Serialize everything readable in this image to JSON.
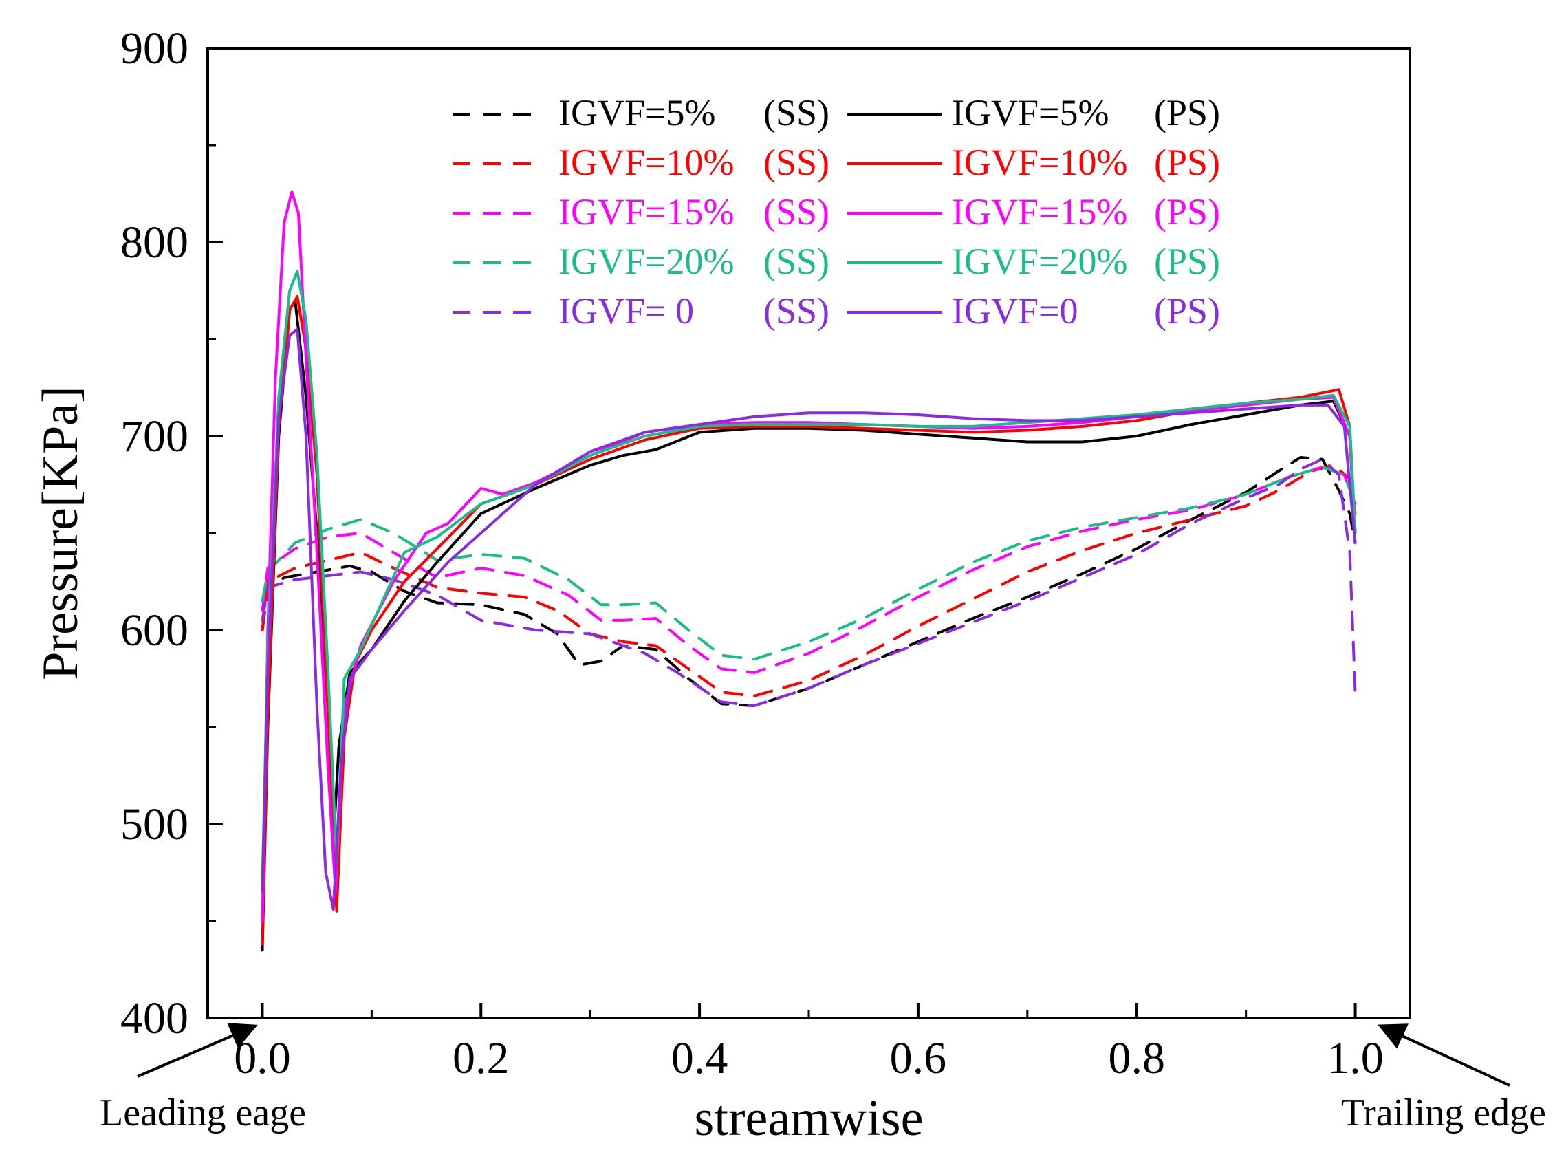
{
  "chart_data": {
    "type": "line",
    "title": "",
    "xlabel": "streamwise",
    "ylabel": "Pressure[KPa]",
    "xlim": [
      -0.05,
      1.05
    ],
    "ylim": [
      400,
      900
    ],
    "xticks": [
      0.0,
      0.2,
      0.4,
      0.6,
      0.8,
      1.0
    ],
    "xtick_labels": [
      "0.0",
      "0.2",
      "0.4",
      "0.6",
      "0.8",
      "1.0"
    ],
    "yticks": [
      400,
      500,
      600,
      700,
      800,
      900
    ],
    "ytick_labels": [
      "400",
      "500",
      "600",
      "700",
      "800",
      "900"
    ],
    "annotations": [
      {
        "name": "leading-edge",
        "text": "Leading eage",
        "x": 0.0
      },
      {
        "name": "trailing-edge",
        "text": "Trailing edge",
        "x": 1.0
      }
    ],
    "legend_position": "top-center",
    "series": [
      {
        "name": "IGVF=5% (SS)",
        "legend": [
          "IGVF=5%",
          "(SS)"
        ],
        "color": "#000000",
        "dash": true,
        "x": [
          0.0,
          0.005,
          0.02,
          0.05,
          0.08,
          0.1,
          0.13,
          0.16,
          0.2,
          0.24,
          0.27,
          0.29,
          0.31,
          0.33,
          0.36,
          0.39,
          0.42,
          0.45,
          0.5,
          0.55,
          0.6,
          0.65,
          0.7,
          0.75,
          0.8,
          0.85,
          0.9,
          0.93,
          0.95,
          0.97,
          0.985,
          0.995,
          1.0
        ],
        "y": [
          600,
          622,
          627,
          630,
          633,
          630,
          620,
          614,
          613,
          608,
          598,
          582,
          584,
          592,
          590,
          575,
          562,
          561,
          570,
          582,
          594,
          606,
          617,
          629,
          642,
          657,
          671,
          682,
          689,
          688,
          672,
          660,
          645
        ]
      },
      {
        "name": "IGVF=10% (SS)",
        "legend": [
          "IGVF=10%",
          "(SS)"
        ],
        "color": "#ff0000",
        "dash": true,
        "x": [
          0.0,
          0.005,
          0.03,
          0.06,
          0.09,
          0.12,
          0.16,
          0.2,
          0.24,
          0.27,
          0.3,
          0.33,
          0.36,
          0.39,
          0.42,
          0.45,
          0.5,
          0.55,
          0.6,
          0.65,
          0.7,
          0.75,
          0.8,
          0.85,
          0.9,
          0.93,
          0.96,
          0.98,
          0.995,
          1.0
        ],
        "y": [
          600,
          625,
          632,
          636,
          640,
          632,
          622,
          619,
          617,
          610,
          598,
          594,
          592,
          580,
          568,
          566,
          574,
          587,
          602,
          616,
          630,
          641,
          650,
          657,
          664,
          672,
          682,
          685,
          678,
          660
        ]
      },
      {
        "name": "IGVF=15% (SS)",
        "legend": [
          "IGVF=15%",
          "(SS)"
        ],
        "color": "#ff00ff",
        "dash": true,
        "x": [
          0.0,
          0.005,
          0.03,
          0.06,
          0.09,
          0.12,
          0.16,
          0.2,
          0.24,
          0.28,
          0.31,
          0.33,
          0.36,
          0.39,
          0.42,
          0.45,
          0.5,
          0.55,
          0.6,
          0.65,
          0.7,
          0.75,
          0.8,
          0.85,
          0.9,
          0.94,
          0.97,
          0.99,
          1.0
        ],
        "y": [
          610,
          632,
          642,
          648,
          650,
          640,
          627,
          632,
          628,
          618,
          605,
          605,
          606,
          592,
          580,
          578,
          588,
          602,
          617,
          631,
          643,
          651,
          657,
          662,
          670,
          679,
          684,
          680,
          665
        ]
      },
      {
        "name": "IGVF=20% (SS)",
        "legend": [
          "IGVF=20%",
          "(SS)"
        ],
        "color": "#1abc8a",
        "dash": true,
        "x": [
          0.0,
          0.005,
          0.03,
          0.06,
          0.09,
          0.12,
          0.16,
          0.2,
          0.24,
          0.28,
          0.31,
          0.33,
          0.36,
          0.39,
          0.42,
          0.45,
          0.5,
          0.55,
          0.6,
          0.65,
          0.7,
          0.75,
          0.8,
          0.85,
          0.9,
          0.94,
          0.97,
          0.99,
          1.0
        ],
        "y": [
          615,
          630,
          645,
          652,
          657,
          650,
          636,
          639,
          637,
          626,
          613,
          613,
          614,
          600,
          587,
          585,
          594,
          606,
          621,
          635,
          646,
          653,
          658,
          663,
          670,
          679,
          684,
          680,
          665
        ]
      },
      {
        "name": "IGVF= 0 (SS)",
        "legend": [
          "IGVF= 0",
          "(SS)"
        ],
        "color": "#8a2be2",
        "dash": true,
        "x": [
          0.0,
          0.005,
          0.03,
          0.06,
          0.09,
          0.12,
          0.16,
          0.2,
          0.25,
          0.3,
          0.35,
          0.38,
          0.42,
          0.45,
          0.5,
          0.55,
          0.6,
          0.65,
          0.7,
          0.75,
          0.8,
          0.85,
          0.9,
          0.93,
          0.95,
          0.97,
          0.985,
          0.995,
          1.0
        ],
        "y": [
          605,
          622,
          626,
          628,
          630,
          626,
          618,
          605,
          600,
          598,
          588,
          578,
          563,
          561,
          570,
          582,
          593,
          604,
          615,
          627,
          639,
          655,
          668,
          675,
          683,
          688,
          680,
          640,
          568
        ]
      },
      {
        "name": "IGVF=5% (PS)",
        "legend": [
          "IGVF=5%",
          "(PS)"
        ],
        "color": "#000000",
        "dash": false,
        "x": [
          0.0,
          0.005,
          0.015,
          0.025,
          0.03,
          0.04,
          0.05,
          0.06,
          0.066,
          0.07,
          0.08,
          0.1,
          0.13,
          0.16,
          0.2,
          0.25,
          0.3,
          0.33,
          0.36,
          0.4,
          0.45,
          0.5,
          0.55,
          0.6,
          0.65,
          0.7,
          0.75,
          0.8,
          0.85,
          0.9,
          0.95,
          0.98,
          0.995,
          1.0
        ],
        "y": [
          435,
          550,
          700,
          765,
          770,
          720,
          650,
          560,
          500,
          540,
          578,
          590,
          615,
          635,
          660,
          673,
          685,
          690,
          693,
          702,
          704,
          704,
          703,
          701,
          699,
          697,
          697,
          700,
          706,
          711,
          716,
          718,
          700,
          650
        ]
      },
      {
        "name": "IGVF=10% (PS)",
        "legend": [
          "IGVF=10%",
          "(PS)"
        ],
        "color": "#ff0000",
        "dash": false,
        "x": [
          0.0,
          0.005,
          0.015,
          0.025,
          0.032,
          0.04,
          0.05,
          0.06,
          0.068,
          0.075,
          0.085,
          0.1,
          0.13,
          0.16,
          0.2,
          0.25,
          0.3,
          0.35,
          0.4,
          0.45,
          0.5,
          0.55,
          0.6,
          0.65,
          0.7,
          0.75,
          0.8,
          0.85,
          0.9,
          0.95,
          0.985,
          0.995,
          1.0
        ],
        "y": [
          438,
          555,
          705,
          765,
          772,
          745,
          680,
          560,
          455,
          545,
          583,
          600,
          625,
          642,
          665,
          675,
          688,
          698,
          704,
          705,
          705,
          704,
          703,
          702,
          703,
          705,
          708,
          713,
          717,
          720,
          724,
          705,
          650
        ]
      },
      {
        "name": "IGVF=15% (PS)",
        "legend": [
          "IGVF=15%",
          "(PS)"
        ],
        "color": "#ff00ff",
        "dash": false,
        "x": [
          0.0,
          0.005,
          0.012,
          0.02,
          0.027,
          0.033,
          0.04,
          0.05,
          0.06,
          0.067,
          0.075,
          0.09,
          0.12,
          0.15,
          0.17,
          0.2,
          0.22,
          0.25,
          0.3,
          0.35,
          0.4,
          0.45,
          0.5,
          0.55,
          0.6,
          0.65,
          0.7,
          0.75,
          0.8,
          0.85,
          0.9,
          0.95,
          0.98,
          0.995,
          1.0
        ],
        "y": [
          450,
          600,
          730,
          810,
          826,
          815,
          740,
          640,
          530,
          465,
          560,
          592,
          625,
          650,
          655,
          673,
          670,
          676,
          690,
          702,
          706,
          707,
          707,
          706,
          705,
          704,
          705,
          707,
          710,
          713,
          716,
          719,
          720,
          700,
          650
        ]
      },
      {
        "name": "IGVF=20% (PS)",
        "legend": [
          "IGVF=20%",
          "(PS)"
        ],
        "color": "#1abc8a",
        "dash": false,
        "x": [
          0.0,
          0.005,
          0.015,
          0.025,
          0.032,
          0.04,
          0.05,
          0.06,
          0.068,
          0.075,
          0.09,
          0.11,
          0.13,
          0.16,
          0.2,
          0.25,
          0.3,
          0.35,
          0.4,
          0.45,
          0.5,
          0.55,
          0.6,
          0.65,
          0.7,
          0.75,
          0.8,
          0.85,
          0.9,
          0.95,
          0.98,
          0.995,
          1.0
        ],
        "y": [
          470,
          590,
          720,
          775,
          785,
          760,
          690,
          580,
          480,
          575,
          590,
          615,
          640,
          648,
          665,
          675,
          690,
          700,
          705,
          706,
          706,
          706,
          705,
          705,
          707,
          709,
          711,
          714,
          717,
          719,
          721,
          705,
          650
        ]
      },
      {
        "name": "IGVF=0 (PS)",
        "legend": [
          "IGVF=0",
          "(PS)"
        ],
        "color": "#8a2be2",
        "dash": false,
        "x": [
          0.0,
          0.005,
          0.015,
          0.025,
          0.032,
          0.04,
          0.05,
          0.058,
          0.065,
          0.072,
          0.08,
          0.1,
          0.13,
          0.17,
          0.2,
          0.25,
          0.3,
          0.35,
          0.4,
          0.45,
          0.5,
          0.55,
          0.6,
          0.65,
          0.7,
          0.75,
          0.8,
          0.85,
          0.9,
          0.95,
          0.975,
          0.99,
          1.0
        ],
        "y": [
          465,
          580,
          710,
          752,
          755,
          700,
          560,
          475,
          456,
          530,
          575,
          590,
          610,
          635,
          650,
          675,
          692,
          702,
          706,
          710,
          712,
          712,
          711,
          709,
          708,
          708,
          710,
          712,
          714,
          716,
          716,
          705,
          645
        ]
      }
    ]
  }
}
